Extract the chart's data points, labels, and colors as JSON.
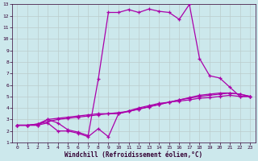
{
  "xlabel": "Windchill (Refroidissement éolien,°C)",
  "bg_color": "#cce8ec",
  "grid_color": "#aacccc",
  "line_color": "#aa00aa",
  "xlim": [
    -0.5,
    23.5
  ],
  "ylim": [
    1,
    13
  ],
  "xticks": [
    0,
    1,
    2,
    3,
    4,
    5,
    6,
    7,
    8,
    9,
    10,
    11,
    12,
    13,
    14,
    15,
    16,
    17,
    18,
    19,
    20,
    21,
    22,
    23
  ],
  "yticks": [
    1,
    2,
    3,
    4,
    5,
    6,
    7,
    8,
    9,
    10,
    11,
    12,
    13
  ],
  "curve1_x": [
    0,
    1,
    2,
    3,
    4,
    5,
    6,
    7,
    8,
    9,
    10,
    11,
    12,
    13,
    14,
    15,
    16,
    17,
    18,
    19,
    20,
    21,
    22,
    23
  ],
  "curve1_y": [
    2.5,
    2.5,
    2.5,
    3.0,
    2.7,
    2.1,
    1.9,
    1.6,
    6.5,
    12.3,
    12.3,
    12.55,
    12.3,
    12.6,
    12.4,
    12.3,
    11.7,
    13.0,
    8.3,
    6.8,
    6.6,
    5.8,
    5.0,
    5.0
  ],
  "curve2_x": [
    0,
    1,
    2,
    3,
    4,
    5,
    6,
    7,
    8,
    9,
    10,
    11,
    12,
    13,
    14,
    15,
    16,
    17,
    18,
    19,
    20,
    21,
    22,
    23
  ],
  "curve2_y": [
    2.5,
    2.5,
    2.5,
    2.7,
    2.0,
    2.0,
    1.8,
    1.5,
    2.2,
    1.5,
    3.5,
    3.75,
    4.0,
    4.2,
    4.4,
    4.5,
    4.6,
    4.7,
    4.85,
    4.9,
    5.0,
    5.1,
    5.0,
    5.0
  ],
  "curve3_x": [
    0,
    1,
    2,
    3,
    4,
    5,
    6,
    7,
    8,
    9,
    10,
    11,
    12,
    13,
    14,
    15,
    16,
    17,
    18,
    19,
    20,
    21,
    22,
    23
  ],
  "curve3_y": [
    2.5,
    2.5,
    2.6,
    3.0,
    3.1,
    3.2,
    3.3,
    3.4,
    3.5,
    3.5,
    3.5,
    3.7,
    3.9,
    4.1,
    4.3,
    4.5,
    4.7,
    4.85,
    5.0,
    5.1,
    5.2,
    5.3,
    5.2,
    5.0
  ],
  "curve4_x": [
    0,
    1,
    2,
    3,
    4,
    5,
    6,
    7,
    8,
    9,
    10,
    11,
    12,
    13,
    14,
    15,
    16,
    17,
    18,
    19,
    20,
    21,
    22,
    23
  ],
  "curve4_y": [
    2.5,
    2.5,
    2.6,
    2.8,
    3.0,
    3.1,
    3.2,
    3.3,
    3.4,
    3.5,
    3.6,
    3.7,
    3.9,
    4.1,
    4.3,
    4.5,
    4.7,
    4.9,
    5.1,
    5.2,
    5.3,
    5.3,
    5.2,
    5.0
  ]
}
